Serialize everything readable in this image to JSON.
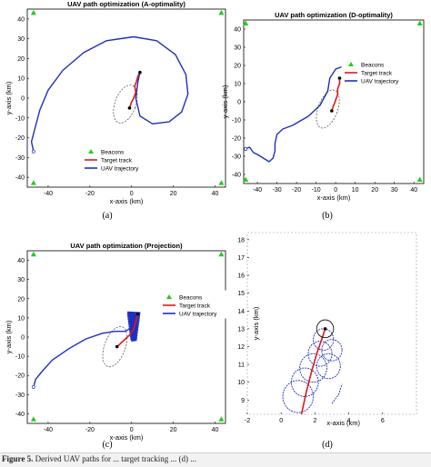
{
  "figure": {
    "caption_fragment_label": "Figure 5.",
    "caption_fragment_text": "Derived UAV paths for ... target tracking ... (d) ...",
    "colors": {
      "beacon": "#22cc22",
      "target": "#d81b1b",
      "uav": "#1f2fbf",
      "ellipse": "#444444",
      "frame": "#000000"
    }
  },
  "chart_data": [
    {
      "id": "a",
      "type": "line",
      "panel_label": "(a)",
      "title": "UAV path optimization (A-optimality)",
      "xlabel": "x-axis (km)",
      "ylabel": "y-axis (km)",
      "xlim": [
        -50,
        45
      ],
      "ylim": [
        -45,
        45
      ],
      "xticks": [
        -40,
        -20,
        0,
        20,
        40
      ],
      "yticks": [
        -40,
        -30,
        -20,
        -10,
        0,
        10,
        20,
        30,
        40
      ],
      "legend": {
        "position": "lower-middle",
        "entries": [
          "Beacons",
          "Target track",
          "UAV trajectory"
        ]
      },
      "beacons": [
        [
          -47,
          43
        ],
        [
          43,
          43
        ],
        [
          -47,
          -43
        ],
        [
          43,
          -43
        ]
      ],
      "target_track": [
        [
          -1,
          -5
        ],
        [
          0,
          -2
        ],
        [
          1,
          0
        ],
        [
          2,
          3
        ],
        [
          1.5,
          6
        ],
        [
          2.5,
          9
        ],
        [
          3,
          11
        ],
        [
          4,
          13
        ]
      ],
      "target_markers": [
        [
          -1,
          -5
        ],
        [
          4,
          13
        ]
      ],
      "ellipse": {
        "cx": -3,
        "cy": -3,
        "rx": 5,
        "ry": 10,
        "rotation_deg": 20
      },
      "uav_trajectory": [
        [
          -47,
          -27
        ],
        [
          -48,
          -22
        ],
        [
          -46,
          -14
        ],
        [
          -44,
          -6
        ],
        [
          -40,
          4
        ],
        [
          -33,
          14
        ],
        [
          -23,
          23
        ],
        [
          -12,
          29
        ],
        [
          1,
          31
        ],
        [
          12,
          29
        ],
        [
          21,
          22
        ],
        [
          26,
          12
        ],
        [
          27,
          2
        ],
        [
          24,
          -7
        ],
        [
          18,
          -12
        ],
        [
          10,
          -13
        ],
        [
          4,
          -9
        ],
        [
          2,
          0
        ],
        [
          3,
          8
        ],
        [
          4,
          13
        ]
      ]
    },
    {
      "id": "b",
      "type": "line",
      "panel_label": "(b)",
      "title": "UAV path optimization (D-optimality)",
      "xlabel": "x-axis (km)",
      "ylabel": "y-axis (km)",
      "xlim": [
        -47,
        45
      ],
      "ylim": [
        -45,
        45
      ],
      "xticks": [
        -40,
        -30,
        -20,
        -10,
        0,
        10,
        20,
        30,
        40
      ],
      "yticks": [
        -40,
        -30,
        -20,
        -10,
        0,
        10,
        20,
        30,
        40
      ],
      "legend": {
        "position": "top-right",
        "entries": [
          "Beacons",
          "Target track",
          "UAV trajectory"
        ]
      },
      "beacons": [
        [
          -46,
          43
        ],
        [
          43,
          43
        ],
        [
          -46,
          -43
        ],
        [
          43,
          -43
        ]
      ],
      "target_track": [
        [
          -2,
          -5
        ],
        [
          -1,
          -2
        ],
        [
          0,
          1
        ],
        [
          1,
          4
        ],
        [
          1,
          7
        ],
        [
          2,
          10
        ],
        [
          2,
          13
        ]
      ],
      "target_markers": [
        [
          -2,
          -5
        ],
        [
          2,
          13
        ]
      ],
      "ellipse": {
        "cx": -4,
        "cy": -4,
        "rx": 5,
        "ry": 11,
        "rotation_deg": 20
      },
      "uav_trajectory": [
        [
          -46,
          -26
        ],
        [
          -44,
          -25
        ],
        [
          -42,
          -28
        ],
        [
          -40,
          -29
        ],
        [
          -37,
          -31
        ],
        [
          -34,
          -33
        ],
        [
          -32,
          -31
        ],
        [
          -31,
          -27
        ],
        [
          -31,
          -23
        ],
        [
          -30,
          -18
        ],
        [
          -27,
          -15
        ],
        [
          -22,
          -13
        ],
        [
          -14,
          -8
        ],
        [
          -8,
          -2
        ],
        [
          -4,
          6
        ],
        [
          -3,
          13
        ],
        [
          0,
          18
        ],
        [
          5,
          20
        ],
        [
          9,
          18
        ],
        [
          10,
          13
        ],
        [
          8,
          9
        ],
        [
          5,
          10
        ],
        [
          3,
          13
        ]
      ]
    },
    {
      "id": "c",
      "type": "line",
      "panel_label": "(c)",
      "title": "UAV path optimization (Projection)",
      "xlabel": "x-axis (km)",
      "ylabel": "y-axis (km)",
      "xlim": [
        -50,
        45
      ],
      "ylim": [
        -45,
        45
      ],
      "xticks": [
        -40,
        -20,
        0,
        20,
        40
      ],
      "yticks": [
        -40,
        -30,
        -20,
        -10,
        0,
        10,
        20,
        30,
        40
      ],
      "legend": {
        "position": "right",
        "entries": [
          "Beacons",
          "Target track",
          "UAV trajectory"
        ]
      },
      "beacons": [
        [
          -47,
          43
        ],
        [
          43,
          43
        ],
        [
          -47,
          -43
        ],
        [
          43,
          -43
        ]
      ],
      "target_track": [
        [
          -7,
          -5
        ],
        [
          -5,
          -3
        ],
        [
          -3,
          -1
        ],
        [
          -1,
          1
        ],
        [
          1,
          4
        ],
        [
          2,
          8
        ],
        [
          3,
          12
        ]
      ],
      "target_markers": [
        [
          -7,
          -5
        ],
        [
          3,
          12
        ]
      ],
      "ellipse": {
        "cx": -8,
        "cy": -5,
        "rx": 5,
        "ry": 11,
        "rotation_deg": 20
      },
      "uav_trajectory": [
        [
          -47,
          -26
        ],
        [
          -46,
          -22
        ],
        [
          -43,
          -18
        ],
        [
          -38,
          -12
        ],
        [
          -30,
          -6
        ],
        [
          -22,
          -1
        ],
        [
          -14,
          2
        ],
        [
          -8,
          3
        ],
        [
          -3,
          3
        ],
        [
          0,
          5
        ],
        [
          1,
          8
        ],
        [
          2,
          11
        ],
        [
          3,
          13
        ]
      ],
      "uav_dense_region": {
        "x": [
          -2,
          4
        ],
        "y": [
          -2,
          13
        ]
      }
    },
    {
      "id": "d",
      "type": "line",
      "panel_label": "(d)",
      "title": "",
      "xlabel": "x-axis (km)",
      "ylabel": "y-axis (km)",
      "xlim": [
        -2,
        8
      ],
      "ylim": [
        8.2,
        18.4
      ],
      "xticks": [
        -2,
        0,
        2,
        4,
        6
      ],
      "yticks": [
        9,
        10,
        11,
        12,
        13,
        14,
        15,
        16,
        17,
        18
      ],
      "target_track": [
        [
          1.2,
          8.2
        ],
        [
          1.5,
          9.5
        ],
        [
          1.8,
          10.6
        ],
        [
          2.1,
          11.6
        ],
        [
          2.4,
          12.4
        ],
        [
          2.6,
          13.0
        ]
      ],
      "target_markers": [
        [
          2.6,
          13.0
        ]
      ],
      "circle_center": [
        2.6,
        13.0
      ],
      "uav_loops": [
        {
          "cx": 1.0,
          "cy": 9.2,
          "r": 0.9
        },
        {
          "cx": 1.4,
          "cy": 10.0,
          "r": 0.8
        },
        {
          "cx": 1.9,
          "cy": 10.8,
          "r": 0.8
        },
        {
          "cx": 2.3,
          "cy": 11.6,
          "r": 0.7
        },
        {
          "cx": 2.8,
          "cy": 10.9,
          "r": 0.7
        },
        {
          "cx": 3.0,
          "cy": 11.8,
          "r": 0.6
        },
        {
          "cx": 2.5,
          "cy": 12.4,
          "r": 0.6
        }
      ],
      "uav_tail": [
        [
          3.0,
          8.8
        ],
        [
          3.4,
          9.3
        ],
        [
          3.6,
          9.9
        ]
      ],
      "black_circle": {
        "cx": 2.6,
        "cy": 13.0,
        "r": 0.5
      }
    }
  ]
}
